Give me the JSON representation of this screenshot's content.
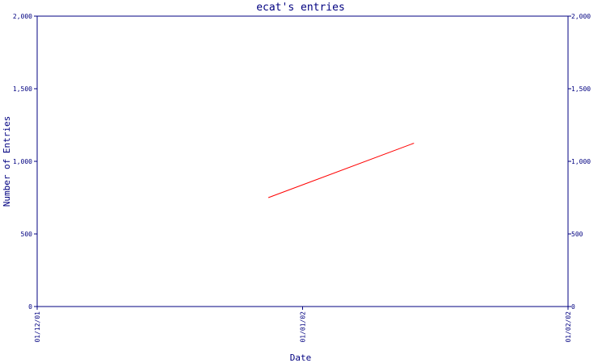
{
  "colors": {
    "axis": "#000080",
    "series": "#ff0000",
    "background": "#ffffff"
  },
  "chart_data": {
    "type": "line",
    "title": "ecat's entries",
    "xlabel": "Date",
    "ylabel": "Number of Entries",
    "x_ticks": [
      "01/12/01",
      "01/01/02",
      "01/02/02"
    ],
    "y_ticks": [
      "0",
      "500",
      "1,000",
      "1,500",
      "2,000"
    ],
    "y_tick_values": [
      0,
      500,
      1000,
      1500,
      2000
    ],
    "ylim": [
      0,
      2000
    ],
    "xlim": [
      "2001-12-01",
      "2002-02-01"
    ],
    "grid": false,
    "mirror_y_axis": true,
    "series": [
      {
        "x": [
          "2001-12-28",
          "2002-01-14"
        ],
        "y": [
          750,
          1125
        ]
      }
    ]
  }
}
